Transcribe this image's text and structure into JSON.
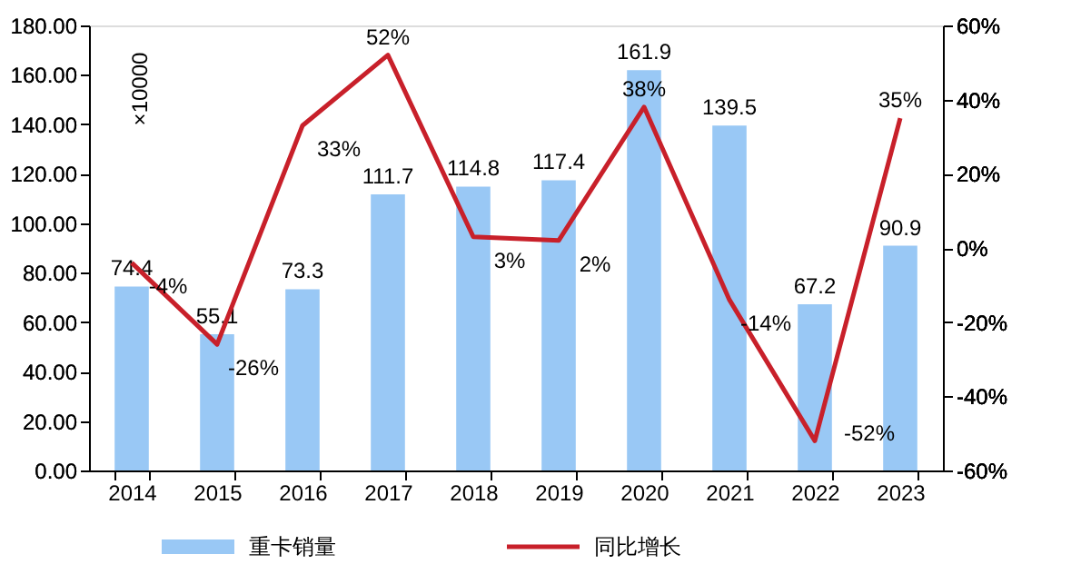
{
  "chart_data": {
    "type": "bar",
    "categories": [
      "2014",
      "2015",
      "2016",
      "2017",
      "2018",
      "2019",
      "2020",
      "2021",
      "2022",
      "2023"
    ],
    "series": [
      {
        "name": "重卡销量",
        "type": "bar",
        "color": "#99c8f5",
        "values": [
          74.4,
          55.1,
          73.3,
          111.7,
          114.8,
          117.4,
          161.9,
          139.5,
          67.2,
          90.9
        ]
      },
      {
        "name": "同比增长",
        "type": "line",
        "axis": "y2",
        "color": "#c8202a",
        "values": [
          -4,
          -26,
          33,
          52,
          3,
          2,
          38,
          -14,
          -52,
          35
        ],
        "value_labels": [
          "-4%",
          "-26%",
          "33%",
          "52%",
          "3%",
          "2%",
          "38%",
          "-14%",
          "-52%",
          "35%"
        ]
      }
    ],
    "ylim": [
      0,
      180
    ],
    "yticks": [
      {
        "value": 0,
        "label": "0.00"
      },
      {
        "value": 20,
        "label": "20.00"
      },
      {
        "value": 40,
        "label": "40.00"
      },
      {
        "value": 60,
        "label": "60.00"
      },
      {
        "value": 80,
        "label": "80.00"
      },
      {
        "value": 100,
        "label": "100.00"
      },
      {
        "value": 120,
        "label": "120.00"
      },
      {
        "value": 140,
        "label": "140.00"
      },
      {
        "value": 160,
        "label": "160.00"
      },
      {
        "value": 180,
        "label": "180.00"
      }
    ],
    "y2lim": [
      -60,
      60
    ],
    "y2ticks": [
      {
        "value": -60,
        "label": "-60%"
      },
      {
        "value": -40,
        "label": "-40%"
      },
      {
        "value": -20,
        "label": "-20%"
      },
      {
        "value": 0,
        "label": "0%"
      },
      {
        "value": 20,
        "label": "20%"
      },
      {
        "value": 40,
        "label": "40%"
      },
      {
        "value": 60,
        "label": "60%"
      }
    ],
    "annotations": [
      "×10000"
    ],
    "data_labels": true,
    "legend": "bottom",
    "grid": false
  }
}
